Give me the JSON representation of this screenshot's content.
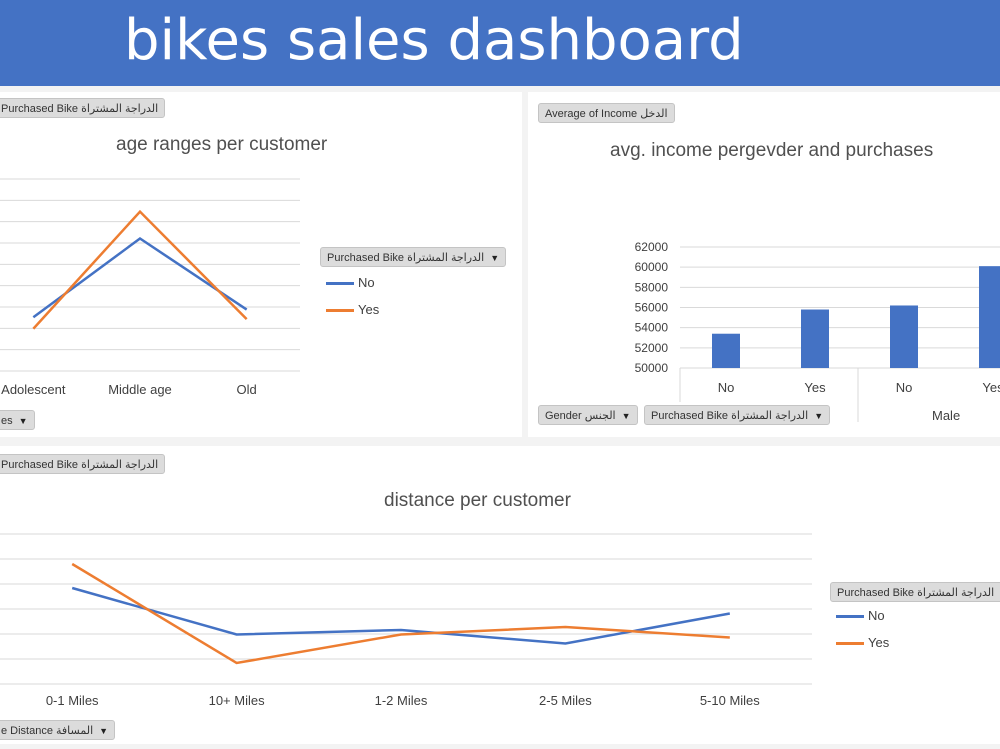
{
  "header": {
    "title": "bikes sales dashboard"
  },
  "colors": {
    "banner": "#4472c4",
    "series_no": "#4472c4",
    "series_yes": "#ed7d31"
  },
  "panels": {
    "age": {
      "filter_top": "Purchased Bike الدراجة المشتراة",
      "filter_bottom": "es",
      "legend_title": "Purchased Bike الدراجة المشتراة"
    },
    "income": {
      "filter_top": "Average of Income الدخل",
      "filter_gender": "Gender الجنس",
      "filter_purchased": "Purchased Bike الدراجة المشتراة",
      "group_label": "Male"
    },
    "distance": {
      "filter_top": "Purchased Bike الدراجة المشتراة",
      "filter_bottom": "e Distance المسافة",
      "legend_title": "Purchased Bike الدراجة المشتراة"
    }
  },
  "chart_data": [
    {
      "type": "line",
      "title": "age ranges per customer",
      "categories": [
        "Adolescent",
        "Middle age",
        "Old"
      ],
      "legend_title": "Purchased Bike الدراجة المشتراة",
      "series": [
        {
          "name": "No",
          "values": [
            0.28,
            0.69,
            0.32
          ]
        },
        {
          "name": "Yes",
          "values": [
            0.22,
            0.83,
            0.27
          ]
        }
      ],
      "grid": true,
      "legend_position": "right"
    },
    {
      "type": "bar",
      "title": "avg. income pergevder and purchases",
      "categories": [
        "No",
        "Yes",
        "No",
        "Yes"
      ],
      "group": "Male",
      "values": [
        53400,
        55800,
        56200,
        60100
      ],
      "ylim": [
        50000,
        62000
      ],
      "yticks": [
        "50000",
        "52000",
        "54000",
        "56000",
        "58000",
        "60000",
        "62000"
      ],
      "grid": true
    },
    {
      "type": "line",
      "title": "distance per customer",
      "categories": [
        "0-1 Miles",
        "10+ Miles",
        "1-2 Miles",
        "2-5 Miles",
        "5-10 Miles"
      ],
      "legend_title": "Purchased Bike الدراجة المشتراة",
      "series": [
        {
          "name": "No",
          "values": [
            0.64,
            0.33,
            0.36,
            0.27,
            0.47
          ]
        },
        {
          "name": "Yes",
          "values": [
            0.8,
            0.14,
            0.33,
            0.38,
            0.31
          ]
        }
      ],
      "grid": true,
      "legend_position": "right"
    }
  ]
}
